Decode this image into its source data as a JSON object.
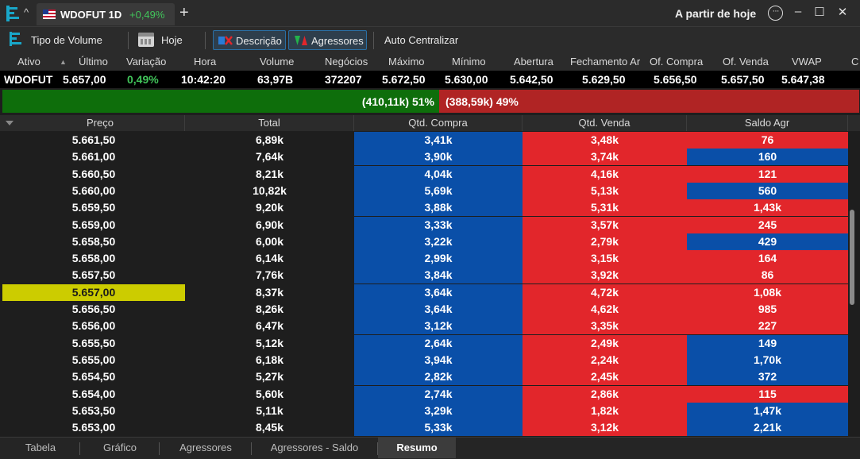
{
  "tab": {
    "symbol": "WDOFUT 1D",
    "change": "+0,49%"
  },
  "header": {
    "from_today": "A partir de hoje"
  },
  "toolbar": {
    "volume_type": "Tipo de Volume",
    "today": "Hoje",
    "description": "Descrição",
    "aggressors": "Agressores",
    "auto_center": "Auto Centralizar"
  },
  "quote": {
    "columns": [
      "Ativo",
      "Último",
      "Variação",
      "Hora",
      "Volume",
      "Negócios",
      "Máximo",
      "Mínimo",
      "Abertura",
      "Fechamento Ar",
      "Of. Compra",
      "Of. Venda",
      "VWAP",
      "C"
    ],
    "values": {
      "ativo": "WDOFUT",
      "ultimo": "5.657,00",
      "variacao": "0,49%",
      "hora": "10:42:20",
      "volume": "63,97B",
      "negocios": "372207",
      "maximo": "5.672,50",
      "minimo": "5.630,00",
      "abertura": "5.642,50",
      "fechamento": "5.629,50",
      "of_compra": "5.656,50",
      "of_venda": "5.657,50",
      "vwap": "5.647,38"
    }
  },
  "aggressor_bar": {
    "buy_label": "(410,11k) 51%",
    "sell_label": "(388,59k) 49%",
    "buy_fraction": 0.51
  },
  "table": {
    "headers": {
      "price": "Preço",
      "total": "Total",
      "buy": "Qtd. Compra",
      "sell": "Qtd. Venda",
      "balance": "Saldo Agr"
    },
    "rows": [
      {
        "price": "5.661,50",
        "total": "6,89k",
        "buy": "3,41k",
        "sell": "3,48k",
        "balance": "76",
        "balance_side": "sell"
      },
      {
        "price": "5.661,00",
        "total": "7,64k",
        "buy": "3,90k",
        "sell": "3,74k",
        "balance": "160",
        "balance_side": "buy"
      },
      {
        "price": "5.660,50",
        "total": "8,21k",
        "buy": "4,04k",
        "sell": "4,16k",
        "balance": "121",
        "balance_side": "sell"
      },
      {
        "price": "5.660,00",
        "total": "10,82k",
        "buy": "5,69k",
        "sell": "5,13k",
        "balance": "560",
        "balance_side": "buy"
      },
      {
        "price": "5.659,50",
        "total": "9,20k",
        "buy": "3,88k",
        "sell": "5,31k",
        "balance": "1,43k",
        "balance_side": "sell"
      },
      {
        "price": "5.659,00",
        "total": "6,90k",
        "buy": "3,33k",
        "sell": "3,57k",
        "balance": "245",
        "balance_side": "sell"
      },
      {
        "price": "5.658,50",
        "total": "6,00k",
        "buy": "3,22k",
        "sell": "2,79k",
        "balance": "429",
        "balance_side": "buy"
      },
      {
        "price": "5.658,00",
        "total": "6,14k",
        "buy": "2,99k",
        "sell": "3,15k",
        "balance": "164",
        "balance_side": "sell"
      },
      {
        "price": "5.657,50",
        "total": "7,76k",
        "buy": "3,84k",
        "sell": "3,92k",
        "balance": "86",
        "balance_side": "sell"
      },
      {
        "price": "5.657,00",
        "total": "8,37k",
        "buy": "3,64k",
        "sell": "4,72k",
        "balance": "1,08k",
        "balance_side": "sell",
        "current": true
      },
      {
        "price": "5.656,50",
        "total": "8,26k",
        "buy": "3,64k",
        "sell": "4,62k",
        "balance": "985",
        "balance_side": "sell"
      },
      {
        "price": "5.656,00",
        "total": "6,47k",
        "buy": "3,12k",
        "sell": "3,35k",
        "balance": "227",
        "balance_side": "sell"
      },
      {
        "price": "5.655,50",
        "total": "5,12k",
        "buy": "2,64k",
        "sell": "2,49k",
        "balance": "149",
        "balance_side": "buy"
      },
      {
        "price": "5.655,00",
        "total": "6,18k",
        "buy": "3,94k",
        "sell": "2,24k",
        "balance": "1,70k",
        "balance_side": "buy"
      },
      {
        "price": "5.654,50",
        "total": "5,27k",
        "buy": "2,82k",
        "sell": "2,45k",
        "balance": "372",
        "balance_side": "buy"
      },
      {
        "price": "5.654,00",
        "total": "5,60k",
        "buy": "2,74k",
        "sell": "2,86k",
        "balance": "115",
        "balance_side": "sell"
      },
      {
        "price": "5.653,50",
        "total": "5,11k",
        "buy": "3,29k",
        "sell": "1,82k",
        "balance": "1,47k",
        "balance_side": "buy"
      },
      {
        "price": "5.653,00",
        "total": "8,45k",
        "buy": "5,33k",
        "sell": "3,12k",
        "balance": "2,21k",
        "balance_side": "buy"
      }
    ]
  },
  "bottom_tabs": [
    "Tabela",
    "Gráfico",
    "Agressores",
    "Agressores - Saldo",
    "Resumo"
  ],
  "active_bottom_tab": "Resumo",
  "colors": {
    "buy": "#0a4fa8",
    "sell": "#e2262b",
    "highlight": "#cccc00",
    "positive": "#41c45a",
    "agg_buy": "#0e6e0b",
    "agg_sell": "#b02424"
  }
}
